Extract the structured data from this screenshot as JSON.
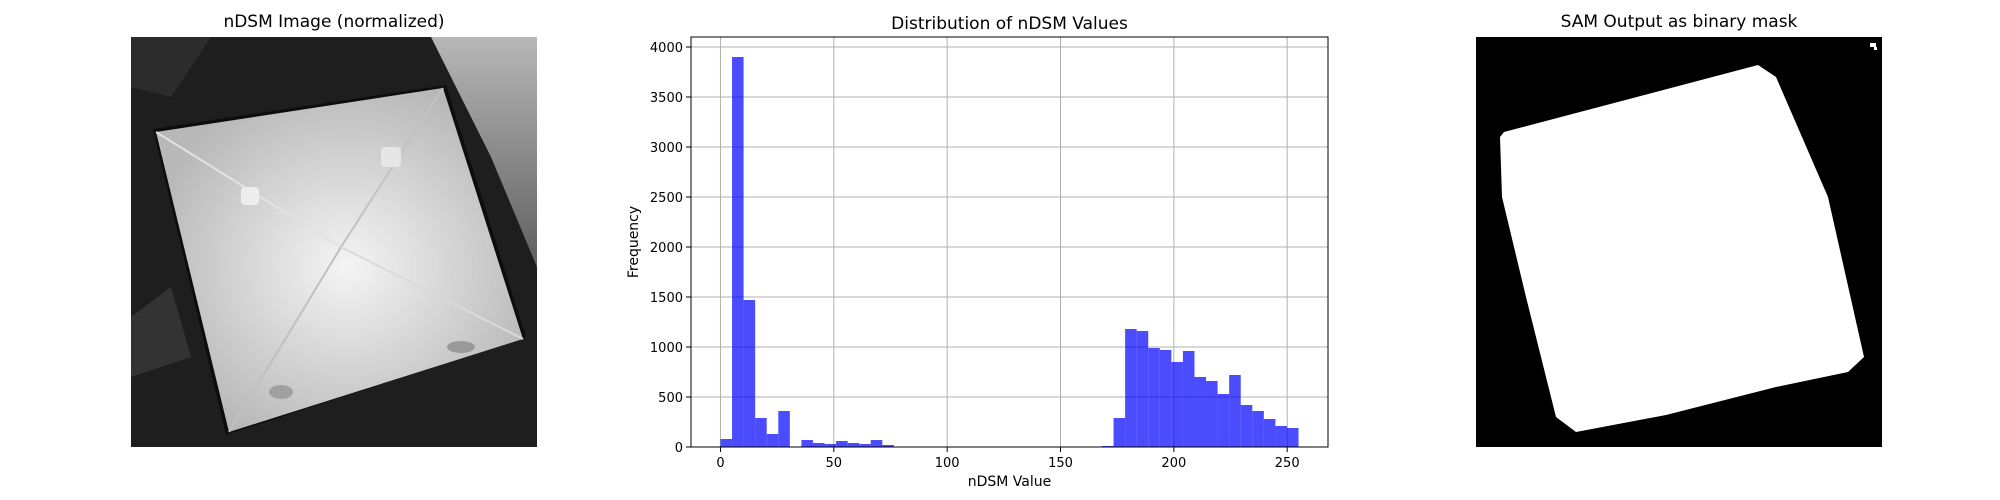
{
  "panels": {
    "left_title": "nDSM Image (normalized)",
    "right_title": "SAM Output as binary mask"
  },
  "chart_data": {
    "type": "bar",
    "title": "Distribution of nDSM Values",
    "xlabel": "nDSM Value",
    "ylabel": "Frequency",
    "xlim": [
      -13,
      268
    ],
    "ylim": [
      0,
      4100
    ],
    "xticks": [
      0,
      50,
      100,
      150,
      200,
      250
    ],
    "yticks": [
      0,
      500,
      1000,
      1500,
      2000,
      2500,
      3000,
      3500,
      4000
    ],
    "grid": true,
    "bar_color": "#0000ff",
    "bar_opacity": 0.7,
    "bin_width": 5.1,
    "bins_start": [
      0,
      5.1,
      10.2,
      15.3,
      20.4,
      25.5,
      30.6,
      35.7,
      40.8,
      45.9,
      51.0,
      56.1,
      61.2,
      66.3,
      71.4,
      76.5,
      81.6,
      86.7,
      91.8,
      96.9,
      102.0,
      107.1,
      112.2,
      117.3,
      122.4,
      127.5,
      132.6,
      137.7,
      142.8,
      147.9,
      153.0,
      158.1,
      163.2,
      168.3,
      173.4,
      178.5,
      183.6,
      188.7,
      193.8,
      198.9,
      204.0,
      209.1,
      214.2,
      219.3,
      224.4,
      229.5,
      234.6,
      239.7,
      244.8,
      249.9
    ],
    "values": [
      80,
      3900,
      1470,
      290,
      130,
      360,
      0,
      70,
      40,
      30,
      60,
      40,
      30,
      70,
      20,
      0,
      0,
      0,
      0,
      0,
      0,
      0,
      0,
      0,
      0,
      0,
      0,
      0,
      0,
      0,
      0,
      0,
      0,
      10,
      290,
      1180,
      1160,
      990,
      970,
      850,
      960,
      700,
      660,
      530,
      720,
      420,
      360,
      280,
      210,
      190
    ]
  }
}
